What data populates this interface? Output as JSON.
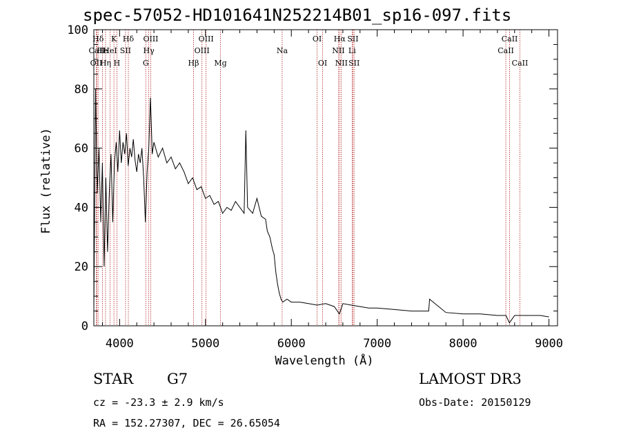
{
  "chart_data": {
    "type": "line",
    "title": "spec-57052-HD101641N252214B01_sp16-097.fits",
    "xlabel": "Wavelength (Å)",
    "ylabel": "Flux (relative)",
    "xlim": [
      3700,
      9100
    ],
    "ylim": [
      0,
      100
    ],
    "xticks": [
      4000,
      5000,
      6000,
      7000,
      8000,
      9000
    ],
    "yticks": [
      0,
      20,
      40,
      60,
      80,
      100
    ],
    "series": [
      {
        "name": "flux",
        "color": "#000000",
        "x": [
          3700,
          3720,
          3740,
          3760,
          3780,
          3800,
          3820,
          3840,
          3860,
          3880,
          3900,
          3920,
          3940,
          3960,
          3980,
          4000,
          4020,
          4040,
          4060,
          4080,
          4100,
          4120,
          4140,
          4160,
          4180,
          4200,
          4220,
          4240,
          4260,
          4280,
          4300,
          4320,
          4340,
          4360,
          4380,
          4400,
          4450,
          4500,
          4550,
          4600,
          4650,
          4700,
          4750,
          4800,
          4850,
          4900,
          4950,
          5000,
          5050,
          5100,
          5150,
          5200,
          5250,
          5300,
          5350,
          5400,
          5450,
          5470,
          5490,
          5550,
          5600,
          5650,
          5700,
          5720,
          5750,
          5780,
          5800,
          5820,
          5840,
          5860,
          5880,
          5900,
          5950,
          6000,
          6100,
          6200,
          6300,
          6400,
          6500,
          6560,
          6600,
          6700,
          6800,
          6900,
          7000,
          7200,
          7400,
          7600,
          7610,
          7800,
          8000,
          8200,
          8400,
          8500,
          8540,
          8600,
          8700,
          8800,
          8900,
          9000
        ],
        "y": [
          5,
          80,
          45,
          60,
          35,
          55,
          20,
          50,
          25,
          45,
          58,
          35,
          55,
          62,
          52,
          66,
          55,
          62,
          58,
          65,
          54,
          60,
          57,
          63,
          56,
          52,
          58,
          55,
          60,
          50,
          35,
          52,
          60,
          77,
          58,
          62,
          57,
          60,
          55,
          57,
          53,
          55,
          52,
          48,
          50,
          46,
          47,
          43,
          44,
          41,
          42,
          38,
          40,
          39,
          42,
          40,
          38,
          66,
          40,
          38,
          43,
          37,
          36,
          32,
          30,
          26,
          24,
          18,
          14,
          11,
          9,
          8,
          9,
          8,
          8,
          7.5,
          7,
          7.5,
          6.5,
          4,
          7.5,
          7,
          6.5,
          6,
          6,
          5.5,
          5,
          5,
          9,
          4.5,
          4,
          4,
          3.5,
          3.5,
          1,
          3.5,
          3.5,
          3.5,
          3.5,
          3
        ]
      }
    ],
    "lines": [
      {
        "label": "Hδ",
        "x": 3750,
        "row": 0
      },
      {
        "label": "CaII",
        "x": 3735,
        "row": 1
      },
      {
        "label": "OII",
        "x": 3728,
        "row": 2
      },
      {
        "label": "He",
        "x": 3800,
        "row": 1
      },
      {
        "label": "Hη",
        "x": 3836,
        "row": 2
      },
      {
        "label": "K",
        "x": 3934,
        "row": 0
      },
      {
        "label": "HeI",
        "x": 3889,
        "row": 1
      },
      {
        "label": "H",
        "x": 3969,
        "row": 2
      },
      {
        "label": "SII",
        "x": 4069,
        "row": 1
      },
      {
        "label": "Hδ",
        "x": 4102,
        "row": 0
      },
      {
        "label": "OIII",
        "x": 4363,
        "row": 0
      },
      {
        "label": "Hγ",
        "x": 4340,
        "row": 1
      },
      {
        "label": "G",
        "x": 4305,
        "row": 2
      },
      {
        "label": "OIII",
        "x": 5007,
        "row": 0
      },
      {
        "label": "OIII",
        "x": 4959,
        "row": 1
      },
      {
        "label": "Hβ",
        "x": 4861,
        "row": 2
      },
      {
        "label": "Mg",
        "x": 5175,
        "row": 2
      },
      {
        "label": "Na",
        "x": 5893,
        "row": 1
      },
      {
        "label": "OI",
        "x": 6300,
        "row": 0
      },
      {
        "label": "OI",
        "x": 6364,
        "row": 2
      },
      {
        "label": "Hα",
        "x": 6563,
        "row": 0
      },
      {
        "label": "SII",
        "x": 6717,
        "row": 0
      },
      {
        "label": "NII",
        "x": 6548,
        "row": 1
      },
      {
        "label": "Li",
        "x": 6708,
        "row": 1
      },
      {
        "label": "NII",
        "x": 6583,
        "row": 2
      },
      {
        "label": "SII",
        "x": 6731,
        "row": 2
      },
      {
        "label": "CaII",
        "x": 8542,
        "row": 0
      },
      {
        "label": "CaII",
        "x": 8498,
        "row": 1
      },
      {
        "label": "CaII",
        "x": 8662,
        "row": 2
      }
    ]
  },
  "info": {
    "object_class": "STAR",
    "subclass": "G7",
    "survey": "LAMOST DR3",
    "cz": "cz = -23.3 ± 2.9 km/s",
    "obs_date": "Obs-Date: 20150129",
    "coords": "RA = 152.27307, DEC =  26.65054"
  },
  "colors": {
    "line_marker": "#b22222",
    "spectrum": "#000000",
    "axes": "#000000"
  }
}
